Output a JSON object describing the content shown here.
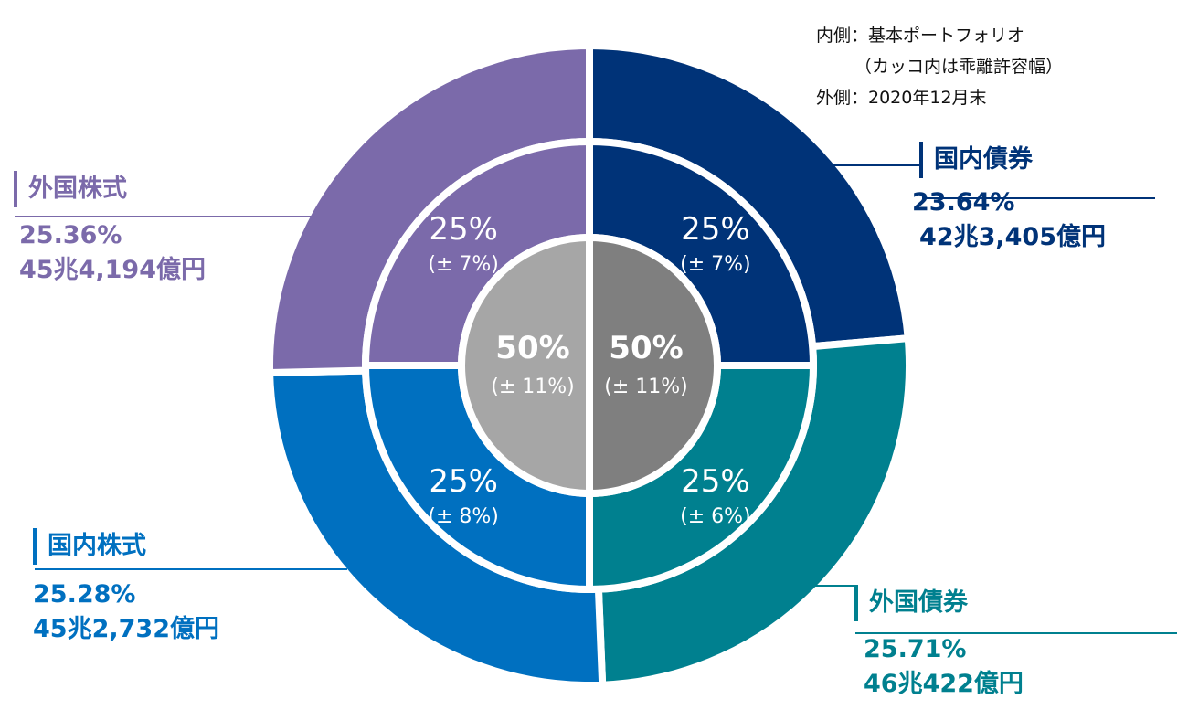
{
  "legend_note": {
    "line1": "内側：基本ポートフォリオ",
    "line2": "（カッコ内は乖離許容幅）",
    "line3": "外側：2020年12月末"
  },
  "chart_data": {
    "type": "donut",
    "inner_core": [
      {
        "value": 50,
        "label": "50%",
        "sub": "(± 11%)",
        "color": "#7f7f7f"
      },
      {
        "value": 50,
        "label": "50%",
        "sub": "(± 11%)",
        "color": "#a6a6a6"
      }
    ],
    "middle_ring": [
      {
        "asset": "国内債券",
        "value": 25,
        "label": "25%",
        "sub": "(± 7%)",
        "color": "#003378"
      },
      {
        "asset": "外国債券",
        "value": 25,
        "label": "25%",
        "sub": "(± 6%)",
        "color": "#00808f"
      },
      {
        "asset": "国内株式",
        "value": 25,
        "label": "25%",
        "sub": "(± 8%)",
        "color": "#0070c0"
      },
      {
        "asset": "外国株式",
        "value": 25,
        "label": "25%",
        "sub": "(± 7%)",
        "color": "#7b6aaa"
      }
    ],
    "outer_ring": [
      {
        "name": "国内債券",
        "value": 23.64,
        "pct": "23.64%",
        "amount": "42兆3,405億円",
        "color": "#003378"
      },
      {
        "name": "外国債券",
        "value": 25.71,
        "pct": "25.71%",
        "amount": "46兆422億円",
        "color": "#00808f"
      },
      {
        "name": "国内株式",
        "value": 25.28,
        "pct": "25.28%",
        "amount": "45兆2,732億円",
        "color": "#0070c0"
      },
      {
        "name": "外国株式",
        "value": 25.36,
        "pct": "25.36%",
        "amount": "45兆4,194億円",
        "color": "#7b6aaa"
      }
    ]
  }
}
